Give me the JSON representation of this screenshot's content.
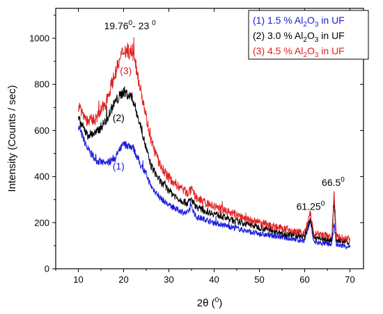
{
  "chart_data": {
    "type": "line",
    "xlabel_base": "2θ (",
    "xlabel_sup": "0",
    "xlabel_end": ")",
    "ylabel": "Intensity (Counts / sec)",
    "xlim": [
      5,
      73
    ],
    "ylim": [
      0,
      1130
    ],
    "xticks": [
      "10",
      "20",
      "30",
      "40",
      "50",
      "60",
      "70"
    ],
    "yticks": [
      "0",
      "200",
      "400",
      "600",
      "800",
      "1000"
    ],
    "grid": false,
    "legend_position": "top-right",
    "series": [
      {
        "name_pre": "(1) 1.5 % Al",
        "name_sub": "2",
        "name_mid": "O",
        "name_sub2": "3",
        "name_post": " in UF",
        "curve_label": "(1)",
        "color": "#1a1adf",
        "x": [
          10,
          12,
          14,
          16,
          18,
          20,
          22,
          24,
          25,
          26,
          28,
          30,
          32,
          34,
          35,
          36,
          38,
          40,
          42,
          44,
          46,
          48,
          50,
          52,
          54,
          56,
          58,
          60,
          61.25,
          62,
          64,
          66,
          66.5,
          67,
          68,
          70
        ],
        "y": [
          620,
          520,
          470,
          455,
          480,
          540,
          530,
          440,
          410,
          360,
          310,
          275,
          255,
          240,
          270,
          225,
          215,
          200,
          190,
          180,
          170,
          160,
          150,
          145,
          140,
          133,
          127,
          120,
          210,
          115,
          110,
          105,
          195,
          105,
          100,
          95
        ],
        "noise": 16
      },
      {
        "name_pre": "(2) 3.0 % Al",
        "name_sub": "2",
        "name_mid": "O",
        "name_sub2": "3",
        "name_post": " in UF",
        "curve_label": "(2)",
        "color": "#000000",
        "x": [
          10,
          12,
          14,
          16,
          18,
          20,
          22,
          24,
          25,
          26,
          28,
          30,
          32,
          34,
          35,
          36,
          38,
          40,
          42,
          44,
          46,
          48,
          50,
          52,
          54,
          56,
          58,
          60,
          61.25,
          62,
          64,
          66,
          66.5,
          67,
          68,
          70
        ],
        "y": [
          650,
          580,
          590,
          640,
          720,
          770,
          740,
          600,
          520,
          450,
          380,
          340,
          305,
          285,
          300,
          270,
          250,
          240,
          225,
          210,
          200,
          190,
          180,
          170,
          160,
          150,
          145,
          140,
          220,
          135,
          130,
          125,
          300,
          125,
          120,
          115
        ],
        "noise": 18
      },
      {
        "name_pre": "(3) 4.5 % Al",
        "name_sub": "2",
        "name_mid": "O",
        "name_sub2": "3",
        "name_post": " in UF",
        "curve_label": "(3)",
        "color": "#e02020",
        "x": [
          10,
          12,
          14,
          16,
          18,
          20,
          22,
          24,
          25,
          26,
          28,
          30,
          32,
          34,
          35,
          36,
          38,
          40,
          42,
          44,
          46,
          48,
          50,
          52,
          54,
          56,
          58,
          60,
          61.25,
          62,
          64,
          66,
          66.5,
          67,
          68,
          70
        ],
        "y": [
          710,
          640,
          650,
          720,
          840,
          950,
          940,
          760,
          660,
          560,
          450,
          395,
          360,
          330,
          340,
          310,
          285,
          270,
          255,
          240,
          225,
          210,
          200,
          190,
          180,
          170,
          160,
          155,
          240,
          150,
          145,
          140,
          330,
          140,
          135,
          130
        ],
        "noise": 22
      }
    ],
    "annotations": [
      {
        "id": "range",
        "text_a": "19.76",
        "sup_a": "0",
        "text_b": "- 23 ",
        "sup_b": "0",
        "x": 21.4,
        "y": 1040
      },
      {
        "id": "peak1",
        "text_a": "61.25",
        "sup_a": "0",
        "text_b": "",
        "sup_b": "",
        "x": 61.3,
        "y": 255
      },
      {
        "id": "peak2",
        "text_a": "66.5",
        "sup_a": "0",
        "text_b": "",
        "sup_b": "",
        "x": 66.3,
        "y": 360
      }
    ]
  }
}
